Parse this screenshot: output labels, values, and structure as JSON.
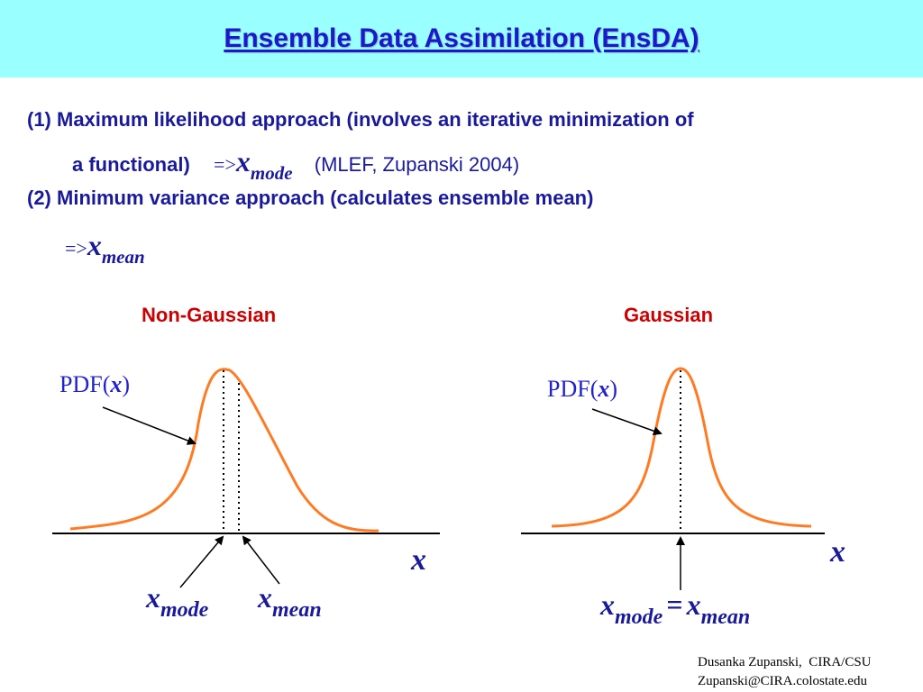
{
  "header": {
    "title": "Ensemble Data Assimilation (EnsDA)"
  },
  "bullets": {
    "item1_line1": "(1) Maximum likelihood approach (involves an iterative minimization of",
    "item1_line2": "a functional)",
    "item1_ref": "(MLEF, Zupanski 2004)",
    "item2_line1": "(2) Minimum variance approach (calculates ensemble mean)",
    "arrow": "=>",
    "x": "x",
    "mode": "mode",
    "mean": "mean"
  },
  "panels": {
    "left": {
      "title": "Non-Gaussian",
      "pdf_label_prefix": "PDF(",
      "pdf_label_var": "x",
      "pdf_label_suffix": ")",
      "axis_label": "x",
      "mode_var": "x",
      "mode_sub": "mode",
      "mean_var": "x",
      "mean_sub": "mean"
    },
    "right": {
      "title": "Gaussian",
      "pdf_label_prefix": "PDF(",
      "pdf_label_var": "x",
      "pdf_label_suffix": ")",
      "axis_label": "x",
      "mode_var": "x",
      "mode_sub": "mode",
      "equals": "=",
      "mean_var": "x",
      "mean_sub": "mean"
    }
  },
  "footer": {
    "line1": "Dusanka Zupanski,  CIRA/CSU",
    "line2": "Zupanski@CIRA.colostate.edu"
  },
  "colors": {
    "title_band": "#99ffff",
    "text_blue": "#1a1a99",
    "label_red": "#cc0000",
    "curve_orange": "#ff7a22"
  }
}
